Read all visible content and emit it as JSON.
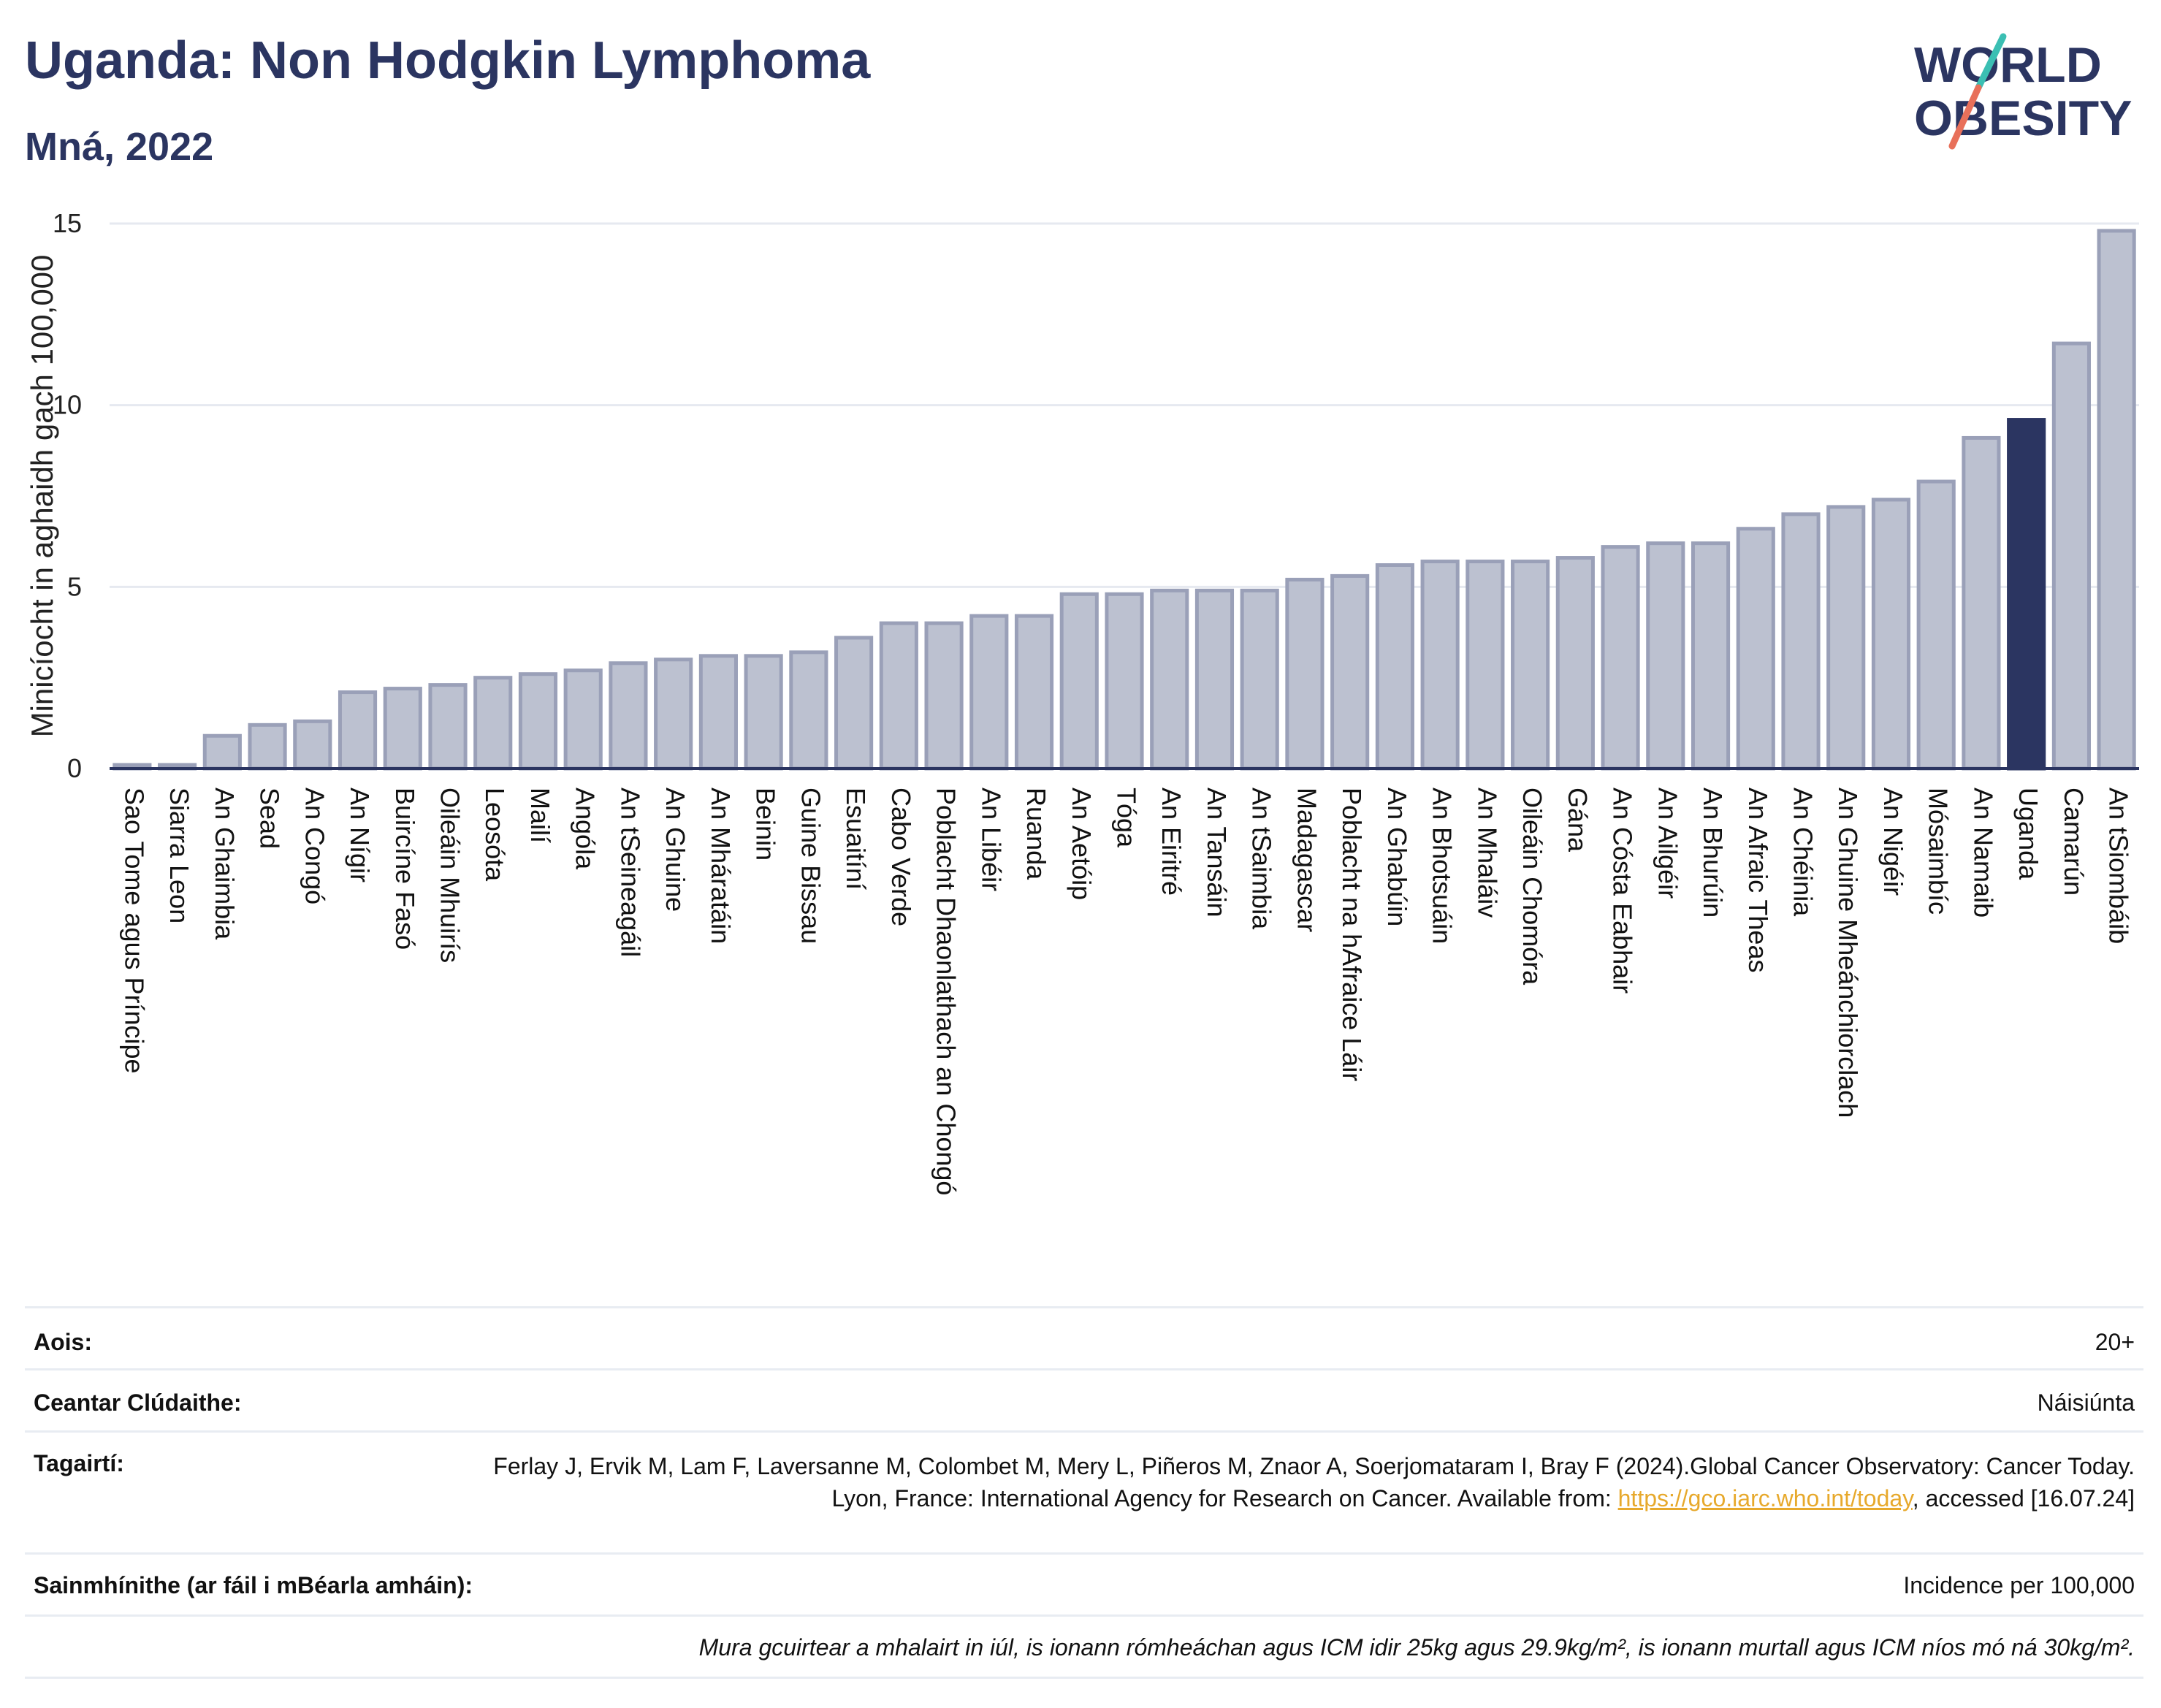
{
  "header": {
    "title": "Uganda: Non Hodgkin Lymphoma",
    "subtitle": "Mná, 2022",
    "logo_line1": "WORLD",
    "logo_line2": "OBESITY"
  },
  "colors": {
    "bar": "#bcc1d0",
    "bar_edge": "#9aa0b8",
    "highlight": "#2b3561",
    "title": "#2b3561",
    "logo_teal": "#3bbfb3",
    "logo_red": "#e8705a"
  },
  "chart_data": {
    "type": "bar",
    "ylabel": "Minicíocht in aghaidh gach 100,000",
    "ylim": [
      0,
      15
    ],
    "yticks": [
      0,
      5,
      10,
      15
    ],
    "highlight": "Uganda",
    "grid": true,
    "categories": [
      "Sao Tome agus Príncipe",
      "Siarra Leon",
      "An Ghaimbia",
      "Sead",
      "An Congó",
      "An Nígir",
      "Buircíne Fasó",
      "Oileáin Mhuirís",
      "Leosóta",
      "Mailí",
      "Angóla",
      "An tSeineagáil",
      "An Ghuine",
      "An Mháratáin",
      "Beinin",
      "Guine Bissau",
      "Esuaitíní",
      "Cabo Verde",
      "Poblacht Dhaonlathach an Chongó",
      "An Libéir",
      "Ruanda",
      "An Aetóip",
      "Tóga",
      "An Eiritré",
      "An Tansáin",
      "An tSaimbia",
      "Madagascar",
      "Poblacht na hAfraice Láir",
      "An Ghabúin",
      "An Bhotsuáin",
      "An Mhaláiv",
      "Oileáin Chomóra",
      "Gána",
      "An Cósta Eabhair",
      "An Ailgéir",
      "An Bhurúin",
      "An Afraic Theas",
      "An Chéinia",
      "An Ghuine Mheánchiorclach",
      "An Nigéir",
      "Mósaimbíc",
      "An Namaib",
      "Uganda",
      "Camarún",
      "An tSiombáib"
    ],
    "values": [
      0.1,
      0.1,
      0.9,
      1.2,
      1.3,
      2.1,
      2.2,
      2.3,
      2.5,
      2.6,
      2.7,
      2.9,
      3.0,
      3.1,
      3.1,
      3.2,
      3.6,
      4.0,
      4.0,
      4.2,
      4.2,
      4.8,
      4.8,
      4.9,
      4.9,
      4.9,
      5.2,
      5.3,
      5.6,
      5.7,
      5.7,
      5.7,
      5.8,
      6.1,
      6.2,
      6.2,
      6.6,
      7.0,
      7.2,
      7.4,
      7.9,
      9.1,
      9.6,
      11.7,
      14.8
    ]
  },
  "info": {
    "age_label": "Aois:",
    "age_value": "20+",
    "area_label": "Ceantar Clúdaithe:",
    "area_value": "Náisiúnta",
    "ref_label": "Tagairtí:",
    "ref_text": "Ferlay J, Ervik M, Lam F, Laversanne M, Colombet M, Mery L, Piñeros M, Znaor A, Soerjomataram I, Bray F (2024).Global Cancer Observatory: Cancer Today. Lyon, France: International Agency for Research on Cancer. Available from: ",
    "ref_link": "https://gco.iarc.who.int/today",
    "ref_tail": ", accessed [16.07.24]",
    "def_label": "Sainmhínithe (ar fáil i mBéarla amháin):",
    "def_value": "Incidence per 100,000",
    "note": "Mura gcuirtear a mhalairt in iúl, is ionann rómheáchan agus ICM idir 25kg agus 29.9kg/m², is ionann murtall agus ICM níos mó ná 30kg/m²."
  }
}
